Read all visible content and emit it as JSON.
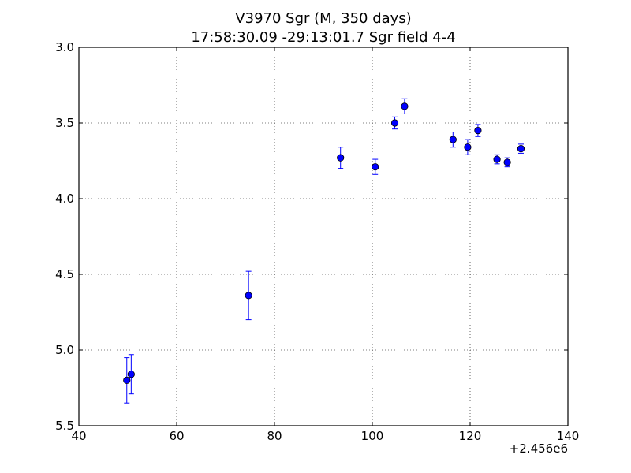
{
  "chart_data": {
    "type": "scatter",
    "title": "V3970 Sgr (M, 350 days)",
    "subtitle": "17:58:30.09 -29:13:01.7 Sgr field 4-4",
    "x_offset_label": "+2.456e6",
    "xlim": [
      40,
      140
    ],
    "ylim": [
      3.0,
      5.5
    ],
    "y_inverted": true,
    "xticks": [
      40,
      60,
      80,
      100,
      120,
      140
    ],
    "yticks": [
      3.0,
      3.5,
      4.0,
      4.5,
      5.0,
      5.5
    ],
    "xtick_labels": [
      "40",
      "60",
      "80",
      "100",
      "120",
      "140"
    ],
    "ytick_labels": [
      "3.0",
      "3.5",
      "4.0",
      "4.5",
      "5.0",
      "5.5"
    ],
    "grid": true,
    "marker_color": "#0000ff",
    "points": [
      {
        "x": 49.8,
        "y": 5.2,
        "err": 0.15
      },
      {
        "x": 50.7,
        "y": 5.16,
        "err": 0.13
      },
      {
        "x": 74.7,
        "y": 4.64,
        "err": 0.16
      },
      {
        "x": 93.5,
        "y": 3.73,
        "err": 0.07
      },
      {
        "x": 100.6,
        "y": 3.79,
        "err": 0.05
      },
      {
        "x": 104.6,
        "y": 3.5,
        "err": 0.04
      },
      {
        "x": 106.6,
        "y": 3.39,
        "err": 0.05
      },
      {
        "x": 116.5,
        "y": 3.61,
        "err": 0.05
      },
      {
        "x": 119.5,
        "y": 3.66,
        "err": 0.05
      },
      {
        "x": 121.6,
        "y": 3.55,
        "err": 0.04
      },
      {
        "x": 125.5,
        "y": 3.74,
        "err": 0.03
      },
      {
        "x": 127.6,
        "y": 3.76,
        "err": 0.03
      },
      {
        "x": 130.4,
        "y": 3.67,
        "err": 0.03
      }
    ]
  }
}
